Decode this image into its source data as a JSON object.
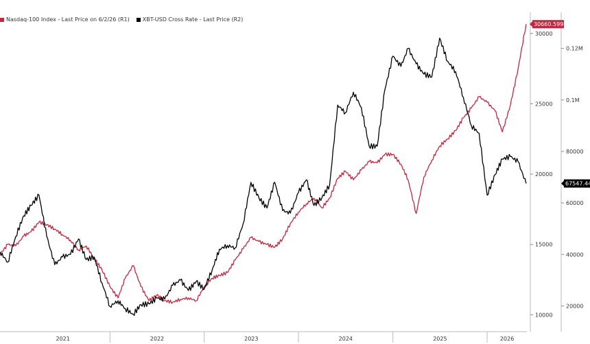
{
  "chart_data": {
    "type": "line",
    "title": "",
    "legend_placement": "top-left",
    "grid": false,
    "x_labels": [
      "2021",
      "2022",
      "2023",
      "2024",
      "2025",
      "2026"
    ],
    "x_range": [
      "2020-11",
      "2026-06"
    ],
    "y_left": {
      "ticks": [
        10000,
        15000,
        20000,
        25000,
        30000
      ],
      "range": [
        8800,
        31500
      ]
    },
    "y_right": {
      "ticks": [
        "20000",
        "40000",
        "60000",
        "80000",
        "0.1M",
        "0.12M"
      ],
      "tick_values": [
        20000,
        40000,
        60000,
        80000,
        100000,
        120000
      ],
      "range": [
        10000,
        134000
      ]
    },
    "series": [
      {
        "name": "Nasdaq-100 Index - Last Price on 6/2/26 (R1)",
        "axis": "left",
        "color": "#c0283f",
        "last_value_label": "30660.5996",
        "points": [
          [
            "2020-11-01",
            14300
          ],
          [
            "2020-12-01",
            15000
          ],
          [
            "2021-01-01",
            14900
          ],
          [
            "2021-02-01",
            15600
          ],
          [
            "2021-03-01",
            15900
          ],
          [
            "2021-04-01",
            16600
          ],
          [
            "2021-05-01",
            16400
          ],
          [
            "2021-06-01",
            16100
          ],
          [
            "2021-07-01",
            15700
          ],
          [
            "2021-08-01",
            15300
          ],
          [
            "2021-09-01",
            14600
          ],
          [
            "2021-10-01",
            14900
          ],
          [
            "2021-11-01",
            14000
          ],
          [
            "2021-12-01",
            13200
          ],
          [
            "2022-01-01",
            12000
          ],
          [
            "2022-02-01",
            11200
          ],
          [
            "2022-03-01",
            12600
          ],
          [
            "2022-04-01",
            13500
          ],
          [
            "2022-05-01",
            12000
          ],
          [
            "2022-06-01",
            11000
          ],
          [
            "2022-07-01",
            11400
          ],
          [
            "2022-08-01",
            11000
          ],
          [
            "2022-09-01",
            10900
          ],
          [
            "2022-10-01",
            11100
          ],
          [
            "2022-11-01",
            11200
          ],
          [
            "2022-12-01",
            11000
          ],
          [
            "2023-01-01",
            12000
          ],
          [
            "2023-02-01",
            12600
          ],
          [
            "2023-03-01",
            12800
          ],
          [
            "2023-04-01",
            13000
          ],
          [
            "2023-05-01",
            13900
          ],
          [
            "2023-06-01",
            14700
          ],
          [
            "2023-07-01",
            15500
          ],
          [
            "2023-08-01",
            15200
          ],
          [
            "2023-09-01",
            15000
          ],
          [
            "2023-10-01",
            14800
          ],
          [
            "2023-11-01",
            15400
          ],
          [
            "2023-12-01",
            16500
          ],
          [
            "2024-01-01",
            17300
          ],
          [
            "2024-02-01",
            17900
          ],
          [
            "2024-03-01",
            18300
          ],
          [
            "2024-04-01",
            17600
          ],
          [
            "2024-05-01",
            18300
          ],
          [
            "2024-06-01",
            19700
          ],
          [
            "2024-07-01",
            20200
          ],
          [
            "2024-08-01",
            19600
          ],
          [
            "2024-09-01",
            20300
          ],
          [
            "2024-10-01",
            20900
          ],
          [
            "2024-11-01",
            20800
          ],
          [
            "2024-12-01",
            21400
          ],
          [
            "2025-01-01",
            21400
          ],
          [
            "2025-02-01",
            20700
          ],
          [
            "2025-03-01",
            19600
          ],
          [
            "2025-04-01",
            17200
          ],
          [
            "2025-05-01",
            19800
          ],
          [
            "2025-06-01",
            21000
          ],
          [
            "2025-07-01",
            22000
          ],
          [
            "2025-08-01",
            22500
          ],
          [
            "2025-09-01",
            23100
          ],
          [
            "2025-10-01",
            24000
          ],
          [
            "2025-11-01",
            24700
          ],
          [
            "2025-12-01",
            25500
          ],
          [
            "2026-01-01",
            25100
          ],
          [
            "2026-02-01",
            24500
          ],
          [
            "2026-03-01",
            23000
          ],
          [
            "2026-04-01",
            24900
          ],
          [
            "2026-05-01",
            27500
          ],
          [
            "2026-06-01",
            30660
          ]
        ]
      },
      {
        "name": "XBT-USD Cross Rate - Last Price (R2)",
        "axis": "right",
        "color": "#000000",
        "last_value_label": "67547.44",
        "points": [
          [
            "2020-11-01",
            41000
          ],
          [
            "2020-12-01",
            37000
          ],
          [
            "2021-01-01",
            47000
          ],
          [
            "2021-02-01",
            55000
          ],
          [
            "2021-03-01",
            59000
          ],
          [
            "2021-04-01",
            63000
          ],
          [
            "2021-05-01",
            47000
          ],
          [
            "2021-06-01",
            36000
          ],
          [
            "2021-07-01",
            39000
          ],
          [
            "2021-08-01",
            40000
          ],
          [
            "2021-09-01",
            46000
          ],
          [
            "2021-10-01",
            38000
          ],
          [
            "2021-11-01",
            39000
          ],
          [
            "2021-12-01",
            29000
          ],
          [
            "2022-01-01",
            19800
          ],
          [
            "2022-02-01",
            22000
          ],
          [
            "2022-03-01",
            19000
          ],
          [
            "2022-04-01",
            16700
          ],
          [
            "2022-05-01",
            20500
          ],
          [
            "2022-06-01",
            20800
          ],
          [
            "2022-07-01",
            23000
          ],
          [
            "2022-08-01",
            22600
          ],
          [
            "2022-09-01",
            28000
          ],
          [
            "2022-10-01",
            30000
          ],
          [
            "2022-11-01",
            26000
          ],
          [
            "2022-12-01",
            29500
          ],
          [
            "2023-01-01",
            26500
          ],
          [
            "2023-02-01",
            34000
          ],
          [
            "2023-03-01",
            42000
          ],
          [
            "2023-04-01",
            43500
          ],
          [
            "2023-05-01",
            42500
          ],
          [
            "2023-06-01",
            52000
          ],
          [
            "2023-07-01",
            68000
          ],
          [
            "2023-08-01",
            62000
          ],
          [
            "2023-09-01",
            58000
          ],
          [
            "2023-10-01",
            68000
          ],
          [
            "2023-11-01",
            57000
          ],
          [
            "2023-12-01",
            56000
          ],
          [
            "2024-01-01",
            64000
          ],
          [
            "2024-02-01",
            69000
          ],
          [
            "2024-03-01",
            59000
          ],
          [
            "2024-04-01",
            62000
          ],
          [
            "2024-05-01",
            67000
          ],
          [
            "2024-06-01",
            98000
          ],
          [
            "2024-07-01",
            95000
          ],
          [
            "2024-08-01",
            103000
          ],
          [
            "2024-09-01",
            97000
          ],
          [
            "2024-10-01",
            82000
          ],
          [
            "2024-11-01",
            82000
          ],
          [
            "2024-12-01",
            104000
          ],
          [
            "2025-01-01",
            117000
          ],
          [
            "2025-02-01",
            113000
          ],
          [
            "2025-03-01",
            120000
          ],
          [
            "2025-04-01",
            114000
          ],
          [
            "2025-05-01",
            110000
          ],
          [
            "2025-06-01",
            109000
          ],
          [
            "2025-07-01",
            124000
          ],
          [
            "2025-08-01",
            115000
          ],
          [
            "2025-09-01",
            111000
          ],
          [
            "2025-10-01",
            101000
          ],
          [
            "2025-11-01",
            90000
          ],
          [
            "2025-12-01",
            87000
          ],
          [
            "2026-01-01",
            63000
          ],
          [
            "2026-02-01",
            71000
          ],
          [
            "2026-03-01",
            77000
          ],
          [
            "2026-04-01",
            78000
          ],
          [
            "2026-05-01",
            76000
          ],
          [
            "2026-06-01",
            67547
          ]
        ]
      }
    ]
  }
}
